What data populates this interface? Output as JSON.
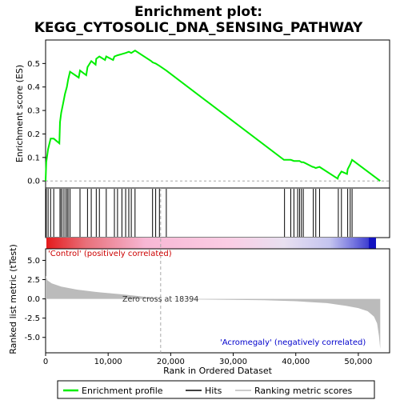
{
  "chart_data": {
    "type": "line",
    "title_line1": "Enrichment plot:",
    "title_line2": "KEGG_CYTOSOLIC_DNA_SENSING_PATHWAY",
    "xlabel": "Rank in Ordered Dataset",
    "ylabel_top": "Enrichment score (ES)",
    "ylabel_bottom": "Ranked list metric (tTest)",
    "xlim": [
      0,
      55000
    ],
    "es_ylim": [
      -0.03,
      0.6
    ],
    "metric_ylim": [
      -7,
      6.5
    ],
    "x_ticks": [
      0,
      10000,
      20000,
      30000,
      40000,
      50000
    ],
    "x_tick_labels": [
      "0",
      "10,000",
      "20,000",
      "30,000",
      "40,000",
      "50,000"
    ],
    "es_ticks": [
      0.0,
      0.1,
      0.2,
      0.3,
      0.4,
      0.5
    ],
    "es_tick_labels": [
      "0.0",
      "0.1",
      "0.2",
      "0.3",
      "0.4",
      "0.5"
    ],
    "metric_ticks": [
      -5.0,
      -2.5,
      0.0,
      2.5,
      5.0
    ],
    "metric_tick_labels": [
      "-5.0",
      "-2.5",
      "0.0",
      "2.5",
      "5.0"
    ],
    "positive_label": "'Control' (positively correlated)",
    "negative_label": "'Acromegaly' (negatively correlated)",
    "zero_cross_label": "Zero cross at 18394",
    "zero_cross": 18394,
    "n_genes": 53500,
    "legend": [
      "Enrichment profile",
      "Hits",
      "Ranking metric scores"
    ],
    "colors": {
      "es_line": "#00ee00",
      "hits": "#000000",
      "metric": "#bbbbbb",
      "zero_line": "#aaaaaa",
      "positive_text": "#cc0000",
      "negative_text": "#0000cc"
    },
    "hits": [
      100,
      400,
      800,
      1300,
      2300,
      2500,
      2800,
      3100,
      3400,
      3600,
      3900,
      5500,
      6700,
      7300,
      8100,
      8600,
      9700,
      11000,
      11500,
      12200,
      12800,
      13300,
      13700,
      14300,
      17100,
      17600,
      18200,
      19300,
      38200,
      39200,
      39700,
      40300,
      40600,
      40900,
      41200,
      42800,
      43200,
      43800,
      46800,
      47300,
      48300,
      48700,
      49000
    ],
    "es_profile": {
      "x": [
        0,
        100,
        400,
        800,
        1300,
        2200,
        2300,
        2500,
        2800,
        3100,
        3400,
        3600,
        3900,
        5300,
        5500,
        6500,
        6700,
        7300,
        8000,
        8100,
        8600,
        9500,
        9700,
        10800,
        11000,
        11500,
        12200,
        12800,
        13300,
        13700,
        14300,
        16900,
        17100,
        17600,
        18200,
        19300,
        38100,
        38200,
        39200,
        39700,
        40300,
        40600,
        40900,
        41200,
        42700,
        42800,
        43200,
        43800,
        46700,
        46800,
        47300,
        48200,
        48300,
        48700,
        49000,
        53500
      ],
      "y": [
        0.0,
        0.08,
        0.135,
        0.18,
        0.18,
        0.16,
        0.25,
        0.29,
        0.33,
        0.37,
        0.4,
        0.43,
        0.465,
        0.44,
        0.47,
        0.45,
        0.485,
        0.51,
        0.495,
        0.52,
        0.53,
        0.515,
        0.53,
        0.515,
        0.53,
        0.535,
        0.54,
        0.545,
        0.55,
        0.545,
        0.555,
        0.51,
        0.505,
        0.5,
        0.49,
        0.47,
        0.09,
        0.09,
        0.09,
        0.085,
        0.085,
        0.085,
        0.08,
        0.08,
        0.06,
        0.06,
        0.055,
        0.06,
        0.01,
        0.02,
        0.04,
        0.03,
        0.05,
        0.07,
        0.09,
        0.0
      ]
    },
    "metric_profile": {
      "x": [
        0,
        300,
        1000,
        2500,
        5000,
        8000,
        12000,
        15000,
        18394,
        25000,
        35000,
        40000,
        45000,
        48000,
        50000,
        51500,
        52500,
        53000,
        53300,
        53500
      ],
      "y": [
        3.0,
        2.4,
        2.0,
        1.6,
        1.2,
        0.9,
        0.6,
        0.35,
        0.0,
        -0.08,
        -0.18,
        -0.3,
        -0.55,
        -0.9,
        -1.2,
        -1.6,
        -2.3,
        -3.2,
        -4.8,
        -6.5
      ]
    }
  }
}
